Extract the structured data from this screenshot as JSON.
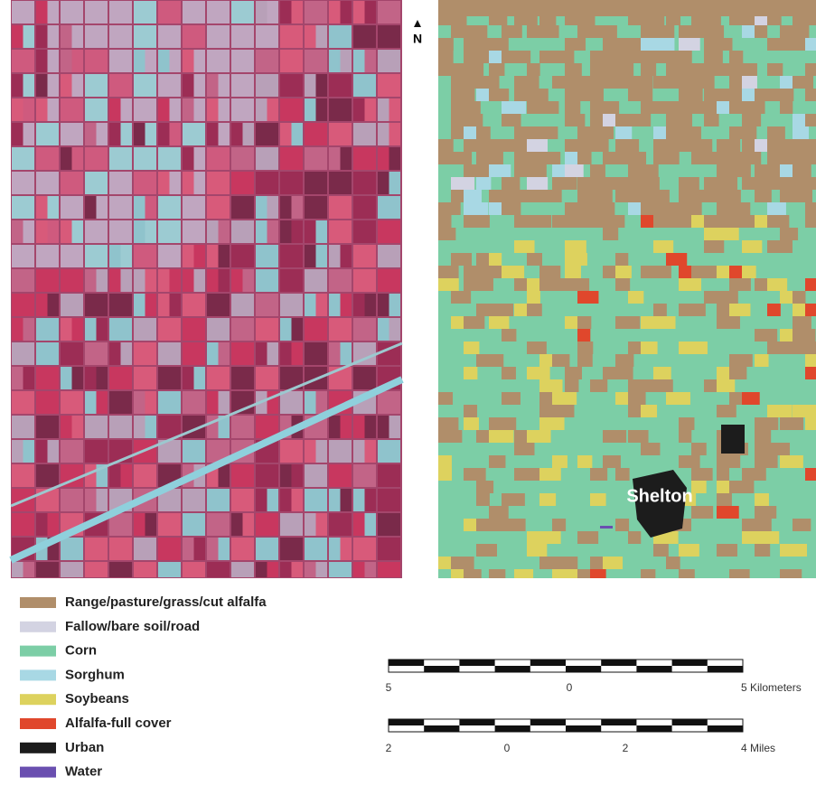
{
  "north_label": "N",
  "place_label": "Shelton",
  "legend": [
    {
      "label": "Range/pasture/grass/cut alfalfa",
      "color": "#b08e6a"
    },
    {
      "label": "Fallow/bare soil/road",
      "color": "#d3d3e2"
    },
    {
      "label": "Corn",
      "color": "#7ccea6"
    },
    {
      "label": "Sorghum",
      "color": "#a8d8e4"
    },
    {
      "label": "Soybeans",
      "color": "#ddd25e"
    },
    {
      "label": "Alfalfa-full cover",
      "color": "#e0472c"
    },
    {
      "label": "Urban",
      "color": "#1c1c1c"
    },
    {
      "label": "Water",
      "color": "#6a4fb0"
    }
  ],
  "scale_km": [
    "5",
    "0",
    "5 Kilometers"
  ],
  "scale_miles": [
    "2",
    "0",
    "2",
    "4 Miles"
  ]
}
